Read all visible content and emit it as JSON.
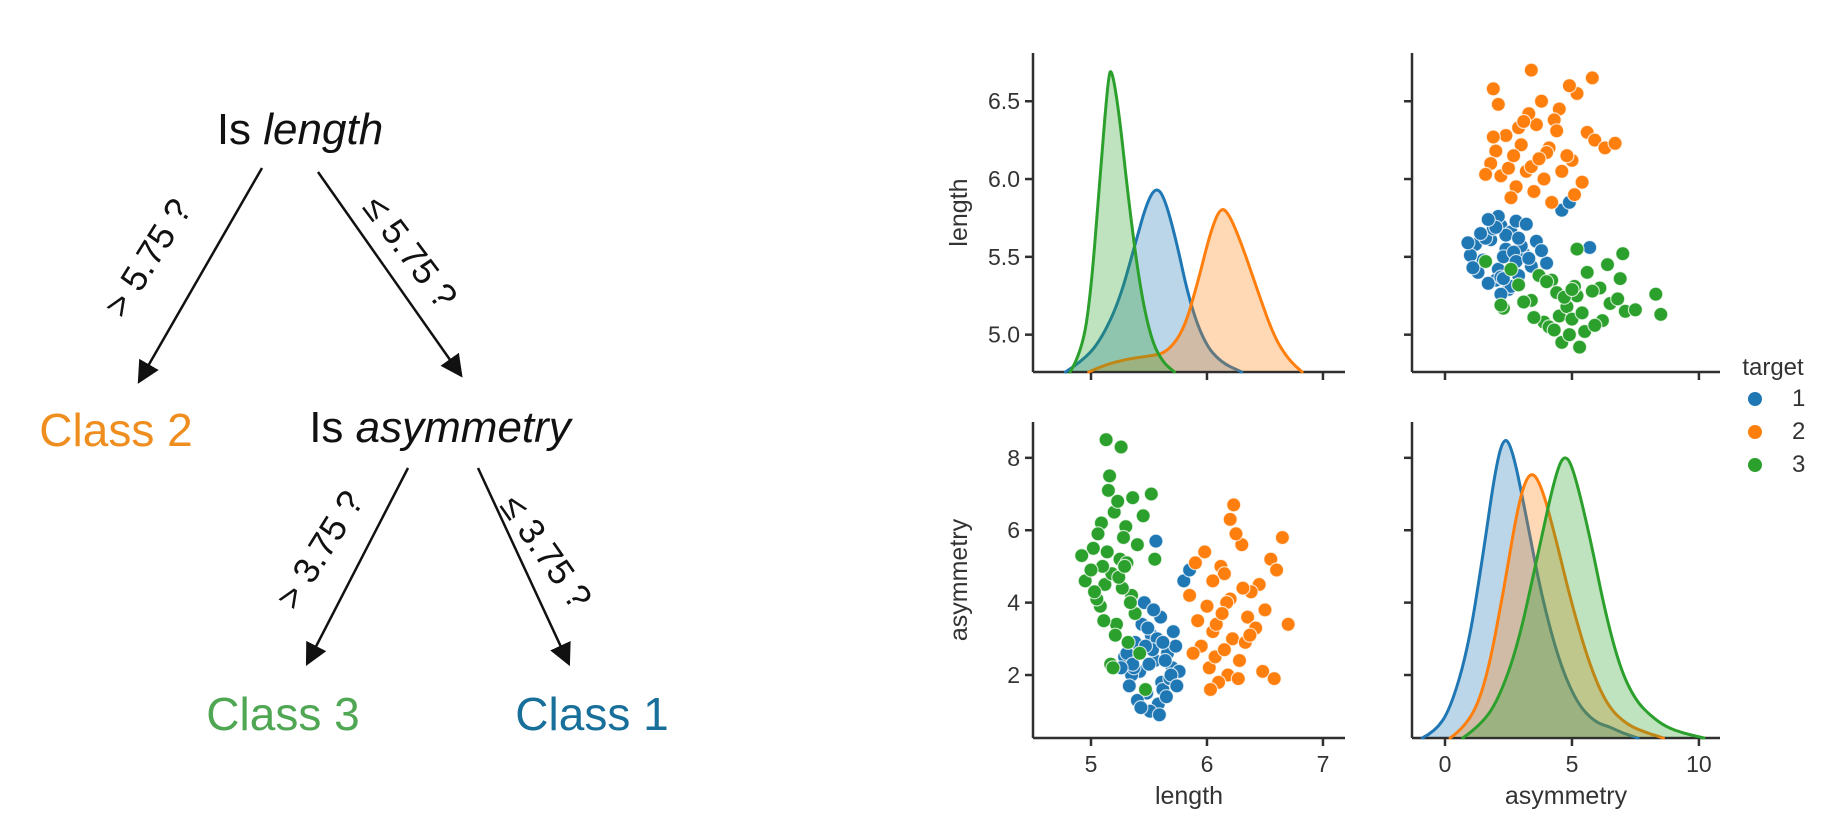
{
  "window": {
    "background": "#ffffff"
  },
  "decision_tree": {
    "root_prefix": "Is ",
    "root_feature": "length",
    "mid_prefix": "Is ",
    "mid_feature": "asymmetry",
    "edge_labels": [
      "> 5.75 ?",
      "≤ 5.75 ?",
      "> 3.75 ?",
      "≤ 3.75 ?"
    ],
    "leaves": [
      {
        "label": "Class 2",
        "color": "#ef8e1e"
      },
      {
        "label": "Class 3",
        "color": "#4fa653"
      },
      {
        "label": "Class 1",
        "color": "#176f9a"
      }
    ],
    "arrow_color": "#111111"
  },
  "chart_data": {
    "type": "pairgrid",
    "variables": [
      "length",
      "asymmetry"
    ],
    "legend": {
      "title": "target",
      "entries": [
        {
          "label": "1",
          "color": "#1f77b4"
        },
        {
          "label": "2",
          "color": "#ff7f0e"
        },
        {
          "label": "3",
          "color": "#2ca02c"
        }
      ]
    },
    "classes": [
      "1",
      "2",
      "3"
    ],
    "colors": {
      "1": "#1f77b4",
      "2": "#ff7f0e",
      "3": "#2ca02c"
    },
    "points": {
      "1": [
        [
          5.42,
          2.1
        ],
        [
          5.55,
          2.4
        ],
        [
          5.61,
          1.8
        ],
        [
          5.38,
          2.9
        ],
        [
          5.7,
          2.2
        ],
        [
          5.48,
          1.5
        ],
        [
          5.52,
          3.1
        ],
        [
          5.66,
          2.6
        ],
        [
          5.35,
          2.0
        ],
        [
          5.58,
          1.2
        ],
        [
          5.73,
          2.8
        ],
        [
          5.44,
          3.4
        ],
        [
          5.5,
          2.3
        ],
        [
          5.62,
          1.6
        ],
        [
          5.29,
          2.5
        ],
        [
          5.57,
          3.0
        ],
        [
          5.68,
          1.9
        ],
        [
          5.4,
          1.3
        ],
        [
          5.53,
          2.7
        ],
        [
          5.76,
          2.1
        ],
        [
          5.46,
          4.0
        ],
        [
          5.6,
          3.6
        ],
        [
          5.33,
          1.7
        ],
        [
          5.64,
          2.4
        ],
        [
          5.51,
          1.0
        ],
        [
          5.71,
          3.2
        ],
        [
          5.37,
          2.2
        ],
        [
          5.56,
          5.7
        ],
        [
          5.8,
          4.6
        ],
        [
          5.47,
          2.8
        ],
        [
          5.59,
          0.9
        ],
        [
          5.65,
          1.4
        ],
        [
          5.31,
          2.6
        ],
        [
          5.54,
          3.8
        ],
        [
          5.69,
          2.0
        ],
        [
          5.43,
          1.1
        ],
        [
          5.62,
          2.9
        ],
        [
          5.49,
          3.3
        ],
        [
          5.74,
          1.7
        ],
        [
          5.36,
          2.3
        ],
        [
          5.85,
          4.9
        ],
        [
          5.26,
          2.2
        ]
      ],
      "2": [
        [
          6.05,
          3.2
        ],
        [
          6.2,
          4.1
        ],
        [
          5.95,
          2.8
        ],
        [
          6.35,
          3.6
        ],
        [
          6.12,
          5.0
        ],
        [
          6.28,
          2.4
        ],
        [
          6.0,
          3.9
        ],
        [
          6.45,
          4.5
        ],
        [
          6.18,
          2.0
        ],
        [
          6.08,
          3.4
        ],
        [
          6.3,
          5.6
        ],
        [
          5.88,
          2.6
        ],
        [
          6.22,
          3.0
        ],
        [
          6.5,
          3.8
        ],
        [
          6.15,
          4.8
        ],
        [
          6.02,
          2.2
        ],
        [
          6.38,
          4.3
        ],
        [
          6.1,
          1.8
        ],
        [
          6.25,
          5.9
        ],
        [
          5.92,
          3.5
        ],
        [
          6.33,
          2.9
        ],
        [
          6.17,
          4.0
        ],
        [
          6.55,
          5.2
        ],
        [
          6.05,
          4.6
        ],
        [
          6.42,
          3.3
        ],
        [
          5.98,
          5.4
        ],
        [
          6.27,
          1.9
        ],
        [
          6.13,
          3.7
        ],
        [
          6.6,
          4.9
        ],
        [
          6.07,
          2.5
        ],
        [
          6.48,
          2.1
        ],
        [
          6.2,
          6.3
        ],
        [
          5.85,
          4.2
        ],
        [
          6.37,
          3.1
        ],
        [
          6.23,
          6.7
        ],
        [
          6.65,
          5.8
        ],
        [
          6.03,
          1.6
        ],
        [
          6.31,
          4.4
        ],
        [
          6.58,
          1.9
        ],
        [
          6.15,
          2.7
        ],
        [
          6.7,
          3.4
        ],
        [
          5.9,
          5.1
        ]
      ],
      "3": [
        [
          5.12,
          4.5
        ],
        [
          5.25,
          5.2
        ],
        [
          5.08,
          3.9
        ],
        [
          5.3,
          6.1
        ],
        [
          5.18,
          4.8
        ],
        [
          5.02,
          5.5
        ],
        [
          5.22,
          3.4
        ],
        [
          5.35,
          4.2
        ],
        [
          5.15,
          7.1
        ],
        [
          5.28,
          5.8
        ],
        [
          4.95,
          4.6
        ],
        [
          5.1,
          5.0
        ],
        [
          5.32,
          2.9
        ],
        [
          5.2,
          6.5
        ],
        [
          5.05,
          4.1
        ],
        [
          5.26,
          8.3
        ],
        [
          5.14,
          5.4
        ],
        [
          5.38,
          3.7
        ],
        [
          5.0,
          4.9
        ],
        [
          5.23,
          6.8
        ],
        [
          5.17,
          2.3
        ],
        [
          5.31,
          5.1
        ],
        [
          5.09,
          6.2
        ],
        [
          5.27,
          4.4
        ],
        [
          5.13,
          8.5
        ],
        [
          5.4,
          5.6
        ],
        [
          5.21,
          3.1
        ],
        [
          4.92,
          5.3
        ],
        [
          5.16,
          7.5
        ],
        [
          5.34,
          4.0
        ],
        [
          5.06,
          5.9
        ],
        [
          5.24,
          4.7
        ],
        [
          5.45,
          6.4
        ],
        [
          5.11,
          3.5
        ],
        [
          5.29,
          5.0
        ],
        [
          5.19,
          2.2
        ],
        [
          5.52,
          7.0
        ],
        [
          5.03,
          4.3
        ],
        [
          5.47,
          1.6
        ],
        [
          5.36,
          6.9
        ],
        [
          5.55,
          5.2
        ],
        [
          5.42,
          2.6
        ]
      ]
    },
    "kde": {
      "length": {
        "1": [
          [
            4.78,
            0
          ],
          [
            4.95,
            0.04
          ],
          [
            5.1,
            0.11
          ],
          [
            5.25,
            0.23
          ],
          [
            5.38,
            0.4
          ],
          [
            5.48,
            0.53
          ],
          [
            5.56,
            0.58
          ],
          [
            5.63,
            0.55
          ],
          [
            5.73,
            0.42
          ],
          [
            5.85,
            0.22
          ],
          [
            5.98,
            0.09
          ],
          [
            6.12,
            0.03
          ],
          [
            6.3,
            0
          ]
        ],
        "2": [
          [
            4.98,
            0
          ],
          [
            5.1,
            0.02
          ],
          [
            5.3,
            0.04
          ],
          [
            5.5,
            0.05
          ],
          [
            5.65,
            0.06
          ],
          [
            5.8,
            0.13
          ],
          [
            5.92,
            0.28
          ],
          [
            6.03,
            0.44
          ],
          [
            6.12,
            0.52
          ],
          [
            6.2,
            0.49
          ],
          [
            6.32,
            0.38
          ],
          [
            6.45,
            0.24
          ],
          [
            6.58,
            0.11
          ],
          [
            6.7,
            0.04
          ],
          [
            6.82,
            0
          ]
        ],
        "3": [
          [
            4.82,
            0
          ],
          [
            4.92,
            0.06
          ],
          [
            5.0,
            0.25
          ],
          [
            5.08,
            0.62
          ],
          [
            5.15,
            0.93
          ],
          [
            5.18,
            0.95
          ],
          [
            5.24,
            0.82
          ],
          [
            5.32,
            0.55
          ],
          [
            5.42,
            0.27
          ],
          [
            5.52,
            0.1
          ],
          [
            5.62,
            0.03
          ],
          [
            5.72,
            0
          ]
        ]
      },
      "asymmetry": {
        "1": [
          [
            -0.9,
            0
          ],
          [
            -0.4,
            0.02
          ],
          [
            0.2,
            0.09
          ],
          [
            0.9,
            0.28
          ],
          [
            1.5,
            0.58
          ],
          [
            2.0,
            0.86
          ],
          [
            2.35,
            0.96
          ],
          [
            2.7,
            0.9
          ],
          [
            3.2,
            0.7
          ],
          [
            3.8,
            0.45
          ],
          [
            4.5,
            0.24
          ],
          [
            5.2,
            0.11
          ],
          [
            5.9,
            0.05
          ],
          [
            6.5,
            0.035
          ],
          [
            7.0,
            0.015
          ],
          [
            7.6,
            0
          ]
        ],
        "2": [
          [
            0.2,
            0
          ],
          [
            0.9,
            0.04
          ],
          [
            1.6,
            0.17
          ],
          [
            2.3,
            0.46
          ],
          [
            2.9,
            0.75
          ],
          [
            3.35,
            0.85
          ],
          [
            3.8,
            0.8
          ],
          [
            4.4,
            0.62
          ],
          [
            5.0,
            0.42
          ],
          [
            5.7,
            0.23
          ],
          [
            6.4,
            0.1
          ],
          [
            7.2,
            0.04
          ],
          [
            8.0,
            0.015
          ],
          [
            8.6,
            0
          ]
        ],
        "3": [
          [
            0.7,
            0
          ],
          [
            1.4,
            0.04
          ],
          [
            2.1,
            0.12
          ],
          [
            2.9,
            0.3
          ],
          [
            3.7,
            0.6
          ],
          [
            4.4,
            0.85
          ],
          [
            4.75,
            0.9
          ],
          [
            5.1,
            0.84
          ],
          [
            5.7,
            0.64
          ],
          [
            6.3,
            0.4
          ],
          [
            6.9,
            0.22
          ],
          [
            7.5,
            0.12
          ],
          [
            8.1,
            0.07
          ],
          [
            8.7,
            0.035
          ],
          [
            9.4,
            0.015
          ],
          [
            10.2,
            0
          ]
        ]
      }
    },
    "panels": [
      {
        "id": "p1",
        "kind": "kde",
        "var": "length",
        "rect": "p1",
        "x_range": [
          4.5,
          7.19
        ],
        "y_range": [
          4.76,
          6.81
        ],
        "x_ticks": [
          5,
          6,
          7
        ],
        "x_tick_labels": null,
        "y_ticks": [
          5.0,
          5.5,
          6.0,
          6.5
        ],
        "y_tick_labels": [
          "5.0",
          "5.5",
          "6.0",
          "6.5"
        ],
        "x_label": null,
        "y_label": "length"
      },
      {
        "id": "p2",
        "kind": "scatter",
        "x_var": "asymmetry",
        "y_var": "length",
        "rect": "p2",
        "x_range": [
          -1.3,
          10.83
        ],
        "y_range": [
          4.76,
          6.81
        ],
        "x_ticks": [
          0,
          5,
          10
        ],
        "x_tick_labels": null,
        "y_ticks": [
          5.0,
          5.5,
          6.0,
          6.5
        ],
        "y_tick_labels": null,
        "x_label": null,
        "y_label": null
      },
      {
        "id": "p3",
        "kind": "scatter",
        "x_var": "length",
        "y_var": "asymmetry",
        "rect": "p3",
        "x_range": [
          4.5,
          7.19
        ],
        "y_range": [
          0.26,
          8.99
        ],
        "x_ticks": [
          5,
          6,
          7
        ],
        "x_tick_labels": [
          "5",
          "6",
          "7"
        ],
        "y_ticks": [
          2,
          4,
          6,
          8
        ],
        "y_tick_labels": [
          "2",
          "4",
          "6",
          "8"
        ],
        "x_label": "length",
        "y_label": "asymmetry"
      },
      {
        "id": "p4",
        "kind": "kde",
        "var": "asymmetry",
        "rect": "p4",
        "x_range": [
          -1.3,
          10.83
        ],
        "y_range": [
          0.26,
          8.99
        ],
        "x_ticks": [
          0,
          5,
          10
        ],
        "x_tick_labels": [
          "0",
          "5",
          "10"
        ],
        "y_ticks": [
          2,
          4,
          6,
          8
        ],
        "y_tick_labels": null,
        "x_label": "asymmetry",
        "y_label": null
      }
    ]
  }
}
